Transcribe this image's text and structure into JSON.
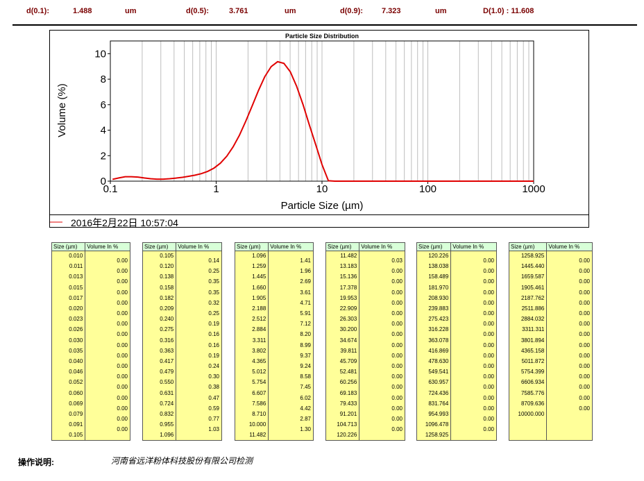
{
  "header": {
    "d01_label": "d(0.1):",
    "d01_value": "1.488",
    "d01_unit": "um",
    "d05_label": "d(0.5):",
    "d05_value": "3.761",
    "d05_unit": "um",
    "d09_label": "d(0.9):",
    "d09_value": "7.323",
    "d09_unit": "um",
    "d10_text": "D(1.0) : 11.608"
  },
  "chart_data": {
    "type": "line",
    "title": "Particle Size Distribution",
    "xlabel": "Particle Size (µm)",
    "ylabel": "Volume (%)",
    "x_scale": "log",
    "xlim": [
      0.1,
      1000
    ],
    "ylim": [
      0,
      11
    ],
    "x_ticks": [
      "0.1",
      "1",
      "10",
      "100",
      "1000"
    ],
    "y_ticks": [
      "0",
      "2",
      "4",
      "6",
      "8",
      "10"
    ],
    "grid": true,
    "series_color": "#e00000",
    "x": [
      0.105,
      0.12,
      0.138,
      0.158,
      0.182,
      0.209,
      0.24,
      0.275,
      0.316,
      0.363,
      0.417,
      0.479,
      0.55,
      0.631,
      0.724,
      0.832,
      0.955,
      1.096,
      1.259,
      1.445,
      1.66,
      1.905,
      2.188,
      2.512,
      2.884,
      3.311,
      3.802,
      4.365,
      5.012,
      5.754,
      6.607,
      7.586,
      8.71,
      10.0,
      11.482,
      13.183,
      1000
    ],
    "y": [
      0.14,
      0.25,
      0.35,
      0.35,
      0.32,
      0.25,
      0.19,
      0.16,
      0.16,
      0.19,
      0.24,
      0.3,
      0.38,
      0.47,
      0.59,
      0.77,
      1.03,
      1.41,
      1.96,
      2.69,
      3.61,
      4.71,
      5.91,
      7.12,
      8.2,
      8.99,
      9.37,
      9.24,
      8.58,
      7.45,
      6.02,
      4.42,
      2.87,
      1.3,
      0.03,
      0.0,
      0.0
    ]
  },
  "legend": {
    "timestamp": "2016年2月22日  10:57:04"
  },
  "tables": {
    "size_header": "Size (µm)",
    "vol_header": "Volume In %",
    "groups": [
      {
        "sizes": "0.010\n0.011\n0.013\n0.015\n0.017\n0.020\n0.023\n0.026\n0.030\n0.035\n0.040\n0.046\n0.052\n0.060\n0.069\n0.079\n0.091\n0.105",
        "vols": "0.00\n0.00\n0.00\n0.00\n0.00\n0.00\n0.00\n0.00\n0.00\n0.00\n0.00\n0.00\n0.00\n0.00\n0.00\n0.00\n0.00"
      },
      {
        "sizes": "0.105\n0.120\n0.138\n0.158\n0.182\n0.209\n0.240\n0.275\n0.316\n0.363\n0.417\n0.479\n0.550\n0.631\n0.724\n0.832\n0.955\n1.096",
        "vols": "0.14\n0.25\n0.35\n0.35\n0.32\n0.25\n0.19\n0.16\n0.16\n0.19\n0.24\n0.30\n0.38\n0.47\n0.59\n0.77\n1.03"
      },
      {
        "sizes": "1.096\n1.259\n1.445\n1.660\n1.905\n2.188\n2.512\n2.884\n3.311\n3.802\n4.365\n5.012\n5.754\n6.607\n7.586\n8.710\n10.000\n11.482",
        "vols": "1.41\n1.96\n2.69\n3.61\n4.71\n5.91\n7.12\n8.20\n8.99\n9.37\n9.24\n8.58\n7.45\n6.02\n4.42\n2.87\n1.30"
      },
      {
        "sizes": "11.482\n13.183\n15.136\n17.378\n19.953\n22.909\n26.303\n30.200\n34.674\n39.811\n45.709\n52.481\n60.256\n69.183\n79.433\n91.201\n104.713\n120.226",
        "vols": "0.03\n0.00\n0.00\n0.00\n0.00\n0.00\n0.00\n0.00\n0.00\n0.00\n0.00\n0.00\n0.00\n0.00\n0.00\n0.00\n0.00"
      },
      {
        "sizes": "120.226\n138.038\n158.489\n181.970\n208.930\n239.883\n275.423\n316.228\n363.078\n416.869\n478.630\n549.541\n630.957\n724.436\n831.764\n954.993\n1096.478\n1258.925",
        "vols": "0.00\n0.00\n0.00\n0.00\n0.00\n0.00\n0.00\n0.00\n0.00\n0.00\n0.00\n0.00\n0.00\n0.00\n0.00\n0.00\n0.00"
      },
      {
        "sizes": "1258.925\n1445.440\n1659.587\n1905.461\n2187.762\n2511.886\n2884.032\n3311.311\n3801.894\n4365.158\n5011.872\n5754.399\n6606.934\n7585.776\n8709.636\n10000.000",
        "vols": "0.00\n0.00\n0.00\n0.00\n0.00\n0.00\n0.00\n0.00\n0.00\n0.00\n0.00\n0.00\n0.00\n0.00\n0.00"
      }
    ]
  },
  "footer": {
    "label": "操作说明:",
    "company": "河南省远洋粉体科技股份有限公司检测"
  }
}
